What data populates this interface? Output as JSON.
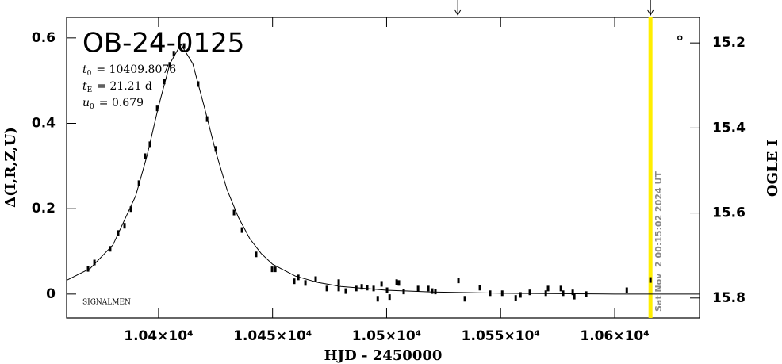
{
  "chart_data": {
    "type": "scatter",
    "title": "OB-24-0125",
    "params": [
      {
        "symbol": "t",
        "sub": "0",
        "text": "= 10409.8076"
      },
      {
        "symbol": "t",
        "sub": "E",
        "text": "= 21.21 d"
      },
      {
        "symbol": "u",
        "sub": "0",
        "text": "= 0.679"
      }
    ],
    "footnote": "SIGNALMEN",
    "timestamp": "Sat Nov  2 00:15:02 2024 UT",
    "current_time": 10615.7,
    "arrows_x": [
      10531.2,
      10615.7
    ],
    "x_label": "HJD - 2450000",
    "y_label": "Δ(I,R,Z,U)",
    "y2_label": "OGLE I",
    "xlim": [
      10359.7,
      10637.2
    ],
    "xticks": [
      {
        "value": 10400,
        "label": "1.04×10⁴"
      },
      {
        "value": 10450,
        "label": "1.045×10⁴"
      },
      {
        "value": 10500,
        "label": "1.05×10⁴"
      },
      {
        "value": 10550,
        "label": "1.055×10⁴"
      },
      {
        "value": 10600,
        "label": "1.06×10⁴"
      }
    ],
    "ylim": [
      -0.056,
      0.648
    ],
    "yticks": [
      0,
      0.2,
      0.4,
      0.6
    ],
    "y2lim": [
      15.847,
      15.14
    ],
    "y2ticks": [
      15.2,
      15.4,
      15.6,
      15.8
    ],
    "color": "#000000",
    "highlight_color": "#ffee00",
    "points": {
      "x": [
        10369.1,
        10371.9,
        10378.8,
        10382.3,
        10385.1,
        10387.9,
        10391.4,
        10394.1,
        10396.2,
        10399.4,
        10402.5,
        10404.9,
        10406.7,
        10411.2,
        10417.4,
        10421.3,
        10425.1,
        10433.1,
        10436.6,
        10442.8,
        10449.8,
        10451.2,
        10459.5,
        10461.3,
        10464.4,
        10468.9,
        10473.8,
        10479.0,
        10479.0,
        10482.1,
        10486.7,
        10489.1,
        10491.5,
        10494.3,
        10496.1,
        10497.8,
        10500.2,
        10501.3,
        10504.4,
        10505.4,
        10507.5,
        10513.8,
        10518.3,
        10520.0,
        10521.4,
        10531.5,
        10534.3,
        10540.9,
        10545.4,
        10550.7,
        10556.6,
        10558.7,
        10562.8,
        10569.8,
        10570.8,
        10576.4,
        10577.4,
        10581.6,
        10582.3,
        10587.5,
        10605.3,
        10615.7
      ],
      "values": [
        0.059,
        0.074,
        0.106,
        0.143,
        0.16,
        0.199,
        0.26,
        0.323,
        0.351,
        0.435,
        0.498,
        0.537,
        0.563,
        0.581,
        0.492,
        0.41,
        0.34,
        0.191,
        0.15,
        0.093,
        0.058,
        0.058,
        0.03,
        0.039,
        0.026,
        0.035,
        0.013,
        0.028,
        0.013,
        0.007,
        0.013,
        0.017,
        0.015,
        0.013,
        -0.011,
        0.024,
        0.009,
        -0.007,
        0.028,
        0.026,
        0.006,
        0.013,
        0.013,
        0.007,
        0.006,
        0.032,
        -0.011,
        0.015,
        0.002,
        0.002,
        -0.009,
        -0.002,
        0.004,
        0.002,
        0.013,
        0.013,
        0.002,
        0.004,
        -0.006,
        0.0,
        0.009,
        0.033
      ]
    },
    "open_points": {
      "x": [
        10628.6
      ],
      "values": [
        0.6
      ]
    },
    "model": {
      "x": [
        10360,
        10370,
        10380,
        10390,
        10395,
        10400,
        10405,
        10409.8,
        10415,
        10420,
        10425,
        10430,
        10435,
        10440,
        10445,
        10450,
        10460,
        10470,
        10480,
        10500,
        10520,
        10550,
        10600,
        10637
      ],
      "values": [
        0.033,
        0.06,
        0.115,
        0.23,
        0.325,
        0.44,
        0.54,
        0.585,
        0.54,
        0.44,
        0.335,
        0.245,
        0.18,
        0.13,
        0.095,
        0.07,
        0.042,
        0.027,
        0.018,
        0.009,
        0.005,
        0.002,
        0.0,
        0.0
      ]
    }
  }
}
